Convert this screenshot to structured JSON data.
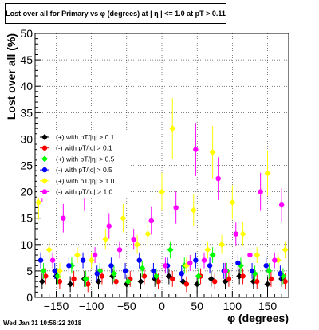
{
  "chart_data": {
    "type": "scatter",
    "title": "Lost over all for Primary vs φ (degrees) at | η | <= 1.0 at pT > 0.11",
    "xlabel": "φ (degrees)",
    "ylabel": "Lost over all (%)",
    "xlim": [
      -180,
      180
    ],
    "ylim": [
      0,
      50
    ],
    "x_ticks": [
      -150,
      -100,
      -50,
      0,
      50,
      100,
      150
    ],
    "y_ticks": [
      0,
      5,
      10,
      15,
      20,
      25,
      30,
      35,
      40,
      45,
      50
    ],
    "x_tick_labels": [
      "−150",
      "−100",
      "−50",
      "0",
      "50",
      "100",
      "150"
    ],
    "y_tick_labels": [
      "0",
      "5",
      "10",
      "15",
      "20",
      "25",
      "30",
      "35",
      "40",
      "45",
      "50"
    ],
    "grid": true,
    "legend_position": "middle-left",
    "series": [
      {
        "name": "(+) with pT/|η| > 0.1",
        "color": "#000000",
        "marker": "diamond",
        "x": [
          -170,
          -150,
          -130,
          -110,
          -90,
          -70,
          -50,
          -30,
          -10,
          10,
          30,
          50,
          70,
          90,
          110,
          130,
          150,
          170
        ],
        "y": [
          3,
          4,
          2.5,
          3.5,
          3,
          4,
          2.5,
          3,
          3.5,
          4,
          3,
          2.5,
          3.5,
          3,
          4,
          3,
          2.5,
          3.5
        ]
      },
      {
        "name": "(-) with pT/|c| > 0.1",
        "color": "#ff0000",
        "marker": "circle",
        "x": [
          -165,
          -145,
          -125,
          -105,
          -85,
          -65,
          -45,
          -25,
          -5,
          15,
          35,
          55,
          75,
          95,
          115,
          135,
          155,
          175
        ],
        "y": [
          4,
          3,
          3.5,
          2.5,
          4,
          3,
          3.5,
          4,
          3,
          3.5,
          2.5,
          4,
          3,
          3.5,
          4,
          3,
          3.5,
          3
        ]
      },
      {
        "name": "(+) with pT/|η| > 0.5",
        "color": "#00ff00",
        "marker": "diamond",
        "x": [
          -168,
          -148,
          -128,
          -108,
          -88,
          -68,
          -48,
          -28,
          -8,
          12,
          32,
          52,
          72,
          92,
          112,
          132,
          152,
          172
        ],
        "y": [
          5,
          4,
          6,
          3.5,
          5,
          4.5,
          3,
          5.5,
          4,
          9,
          6,
          4,
          8,
          5,
          6,
          4.5,
          5,
          4
        ]
      },
      {
        "name": "(-) with pT/|c| > 0.5",
        "color": "#0000ff",
        "marker": "circle",
        "x": [
          -172,
          -152,
          -132,
          -112,
          -92,
          -72,
          -52,
          -32,
          -12,
          8,
          28,
          48,
          68,
          88,
          108,
          128,
          148,
          168
        ],
        "y": [
          7,
          5,
          6,
          7,
          4.5,
          6,
          5,
          7,
          5,
          6,
          4.5,
          7,
          6,
          5,
          6.5,
          5,
          6,
          4.5
        ]
      },
      {
        "name": "(+) with pT/|η| > 1.0",
        "color": "#ffff00",
        "marker": "diamond",
        "x": [
          -175,
          -160,
          -145,
          -120,
          -100,
          -80,
          -55,
          -35,
          -20,
          0,
          15,
          35,
          45,
          65,
          72,
          85,
          100,
          115,
          135,
          150,
          165,
          175
        ],
        "y": [
          18,
          9,
          5,
          8,
          7,
          11,
          15,
          10,
          12,
          20,
          32,
          6,
          16.5,
          9,
          27.5,
          10,
          18,
          12,
          8,
          23.5,
          7,
          9
        ]
      },
      {
        "name": "(-) with pT/|q| > 1.0",
        "color": "#ff00ff",
        "marker": "circle",
        "x": [
          -170,
          -155,
          -140,
          -110,
          -95,
          -75,
          -60,
          -40,
          -15,
          5,
          20,
          40,
          48,
          60,
          80,
          90,
          105,
          125,
          140,
          160,
          170
        ],
        "y": [
          22,
          7,
          15,
          20,
          8,
          13.5,
          9,
          11,
          14.5,
          6,
          17,
          6.5,
          28,
          7,
          22.5,
          5,
          12,
          8,
          20,
          7,
          17.5
        ]
      }
    ]
  },
  "timestamp": "Wed Jan 31 10:56:22 2018"
}
